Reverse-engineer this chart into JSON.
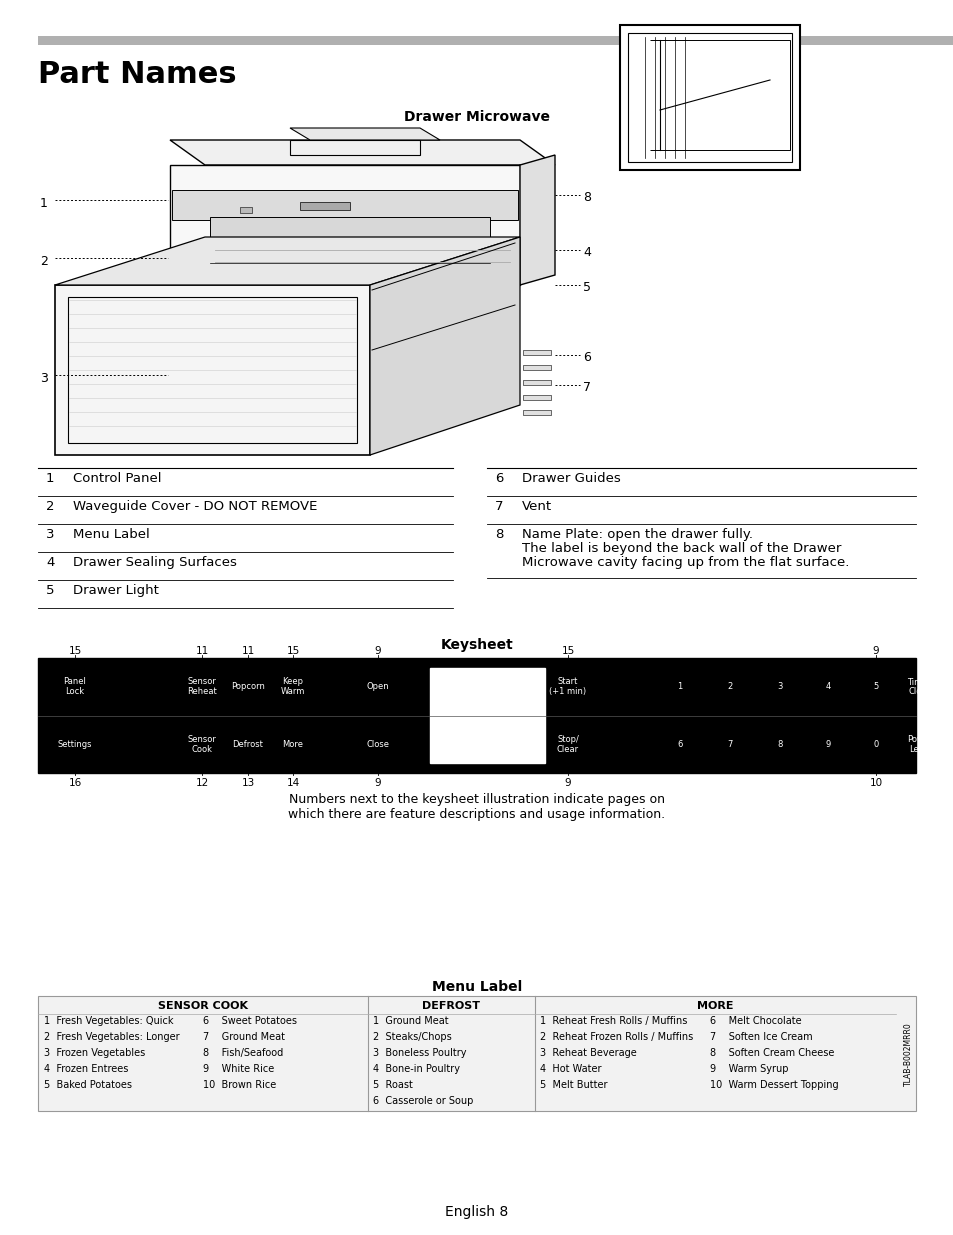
{
  "page_title": "Part Names",
  "section1_title": "Drawer Microwave",
  "section2_title": "Keysheet",
  "section3_title": "Menu Label",
  "header_bar_color": "#b0b0b0",
  "bg_color": "#ffffff",
  "text_color": "#000000",
  "part_labels_left": [
    [
      "1",
      "Control Panel"
    ],
    [
      "2",
      "Waveguide Cover - DO NOT REMOVE"
    ],
    [
      "3",
      "Menu Label"
    ],
    [
      "4",
      "Drawer Sealing Surfaces"
    ],
    [
      "5",
      "Drawer Light"
    ]
  ],
  "part_labels_right_simple": [
    [
      "6",
      "Drawer Guides"
    ],
    [
      "7",
      "Vent"
    ]
  ],
  "part_label_8_line1": "Name Plate: open the drawer fully.",
  "part_label_8_line2": "The label is beyond the back wall of the Drawer",
  "part_label_8_line3": "Microwave cavity facing up from the flat surface.",
  "keysheet_top_labels": [
    [
      75,
      "15"
    ],
    [
      202,
      "11"
    ],
    [
      248,
      "11"
    ],
    [
      293,
      "15"
    ],
    [
      378,
      "9"
    ],
    [
      568,
      "15"
    ],
    [
      876,
      "9"
    ]
  ],
  "keysheet_bottom_labels": [
    [
      75,
      "16"
    ],
    [
      202,
      "12"
    ],
    [
      248,
      "13"
    ],
    [
      293,
      "14"
    ],
    [
      378,
      "9"
    ],
    [
      568,
      "9"
    ],
    [
      876,
      "10"
    ]
  ],
  "keysheet_note": "Numbers next to the keysheet illustration indicate pages on\nwhich there are feature descriptions and usage information.",
  "menu_sensor_cook_title": "SENSOR COOK",
  "menu_sensor_cook_col1": [
    "1  Fresh Vegetables: Quick",
    "2  Fresh Vegetables: Longer",
    "3  Frozen Vegetables",
    "4  Frozen Entrees",
    "5  Baked Potatoes"
  ],
  "menu_sensor_cook_col2": [
    "6    Sweet Potatoes",
    "7    Ground Meat",
    "8    Fish/Seafood",
    "9    White Rice",
    "10  Brown Rice"
  ],
  "menu_defrost_title": "DEFROST",
  "menu_defrost_items": [
    "1  Ground Meat",
    "2  Steaks/Chops",
    "3  Boneless Poultry",
    "4  Bone-in Poultry",
    "5  Roast",
    "6  Casserole or Soup"
  ],
  "menu_more_title": "MORE",
  "menu_more_col1": [
    "1  Reheat Fresh Rolls / Muffins",
    "2  Reheat Frozen Rolls / Muffins",
    "3  Reheat Beverage",
    "4  Hot Water",
    "5  Melt Butter"
  ],
  "menu_more_col2": [
    "6    Melt Chocolate",
    "7    Soften Ice Cream",
    "8    Soften Cream Cheese",
    "9    Warm Syrup",
    "10  Warm Dessert Topping"
  ],
  "footer_text": "English 8",
  "sidebar_text": "TLAB-B002MRR0"
}
